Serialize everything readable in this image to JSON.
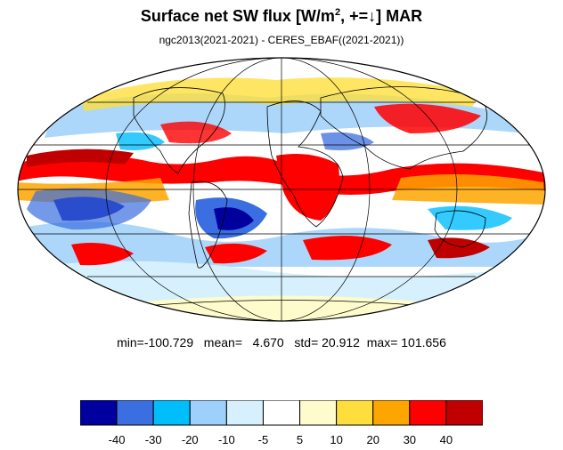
{
  "title": {
    "main": "Surface net SW flux [W/m",
    "sup": "2",
    "rest": ", +=↓]  MAR"
  },
  "subtitle": "ngc2013(2021-2021) - CERES_EBAF((2021-2021))",
  "stats": {
    "min_label": "min=",
    "min": "-100.729",
    "mean_label": "mean=",
    "mean": "4.670",
    "std_label": "std=",
    "std": "20.912",
    "max_label": "max=",
    "max": "101.656"
  },
  "map": {
    "projection": "mollweide",
    "ocean_background": "#ffffff",
    "coastline_color": "#000000",
    "grid_color": "#000000"
  },
  "colorbar": {
    "colors": [
      "#00009f",
      "#3b6ee0",
      "#00bdfc",
      "#9dd0fa",
      "#d6f1fd",
      "#ffffff",
      "#fefccc",
      "#fede3c",
      "#fea500",
      "#fe0000",
      "#c00000"
    ],
    "labels": [
      "-40",
      "-30",
      "-20",
      "-10",
      "-5",
      "5",
      "10",
      "20",
      "30",
      "40"
    ]
  }
}
